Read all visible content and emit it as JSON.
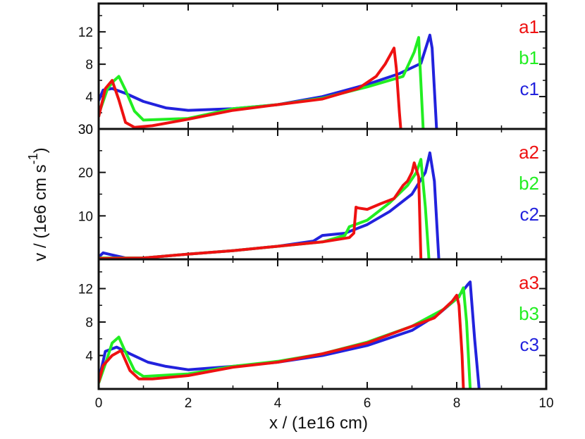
{
  "chart_data": {
    "type": "line",
    "xlabel": "x / (1e16 cm)",
    "ylabel": {
      "main": "v / (1e6 cm s",
      "sup": "-1",
      "close": ")"
    },
    "xlim": [
      0,
      10
    ],
    "xticks": [
      0,
      2,
      4,
      6,
      8,
      10
    ],
    "colors": {
      "a": "#ee1111",
      "b": "#22ee22",
      "c": "#2222dd"
    },
    "panels": [
      {
        "ylim": [
          0,
          15.5
        ],
        "yticks": [
          4,
          8,
          12
        ],
        "extra_tick_label": "30",
        "series": [
          {
            "name": "c1",
            "color": "#2222dd",
            "points": [
              [
                0,
                3.5
              ],
              [
                0.1,
                4.8
              ],
              [
                0.3,
                5
              ],
              [
                0.6,
                4.4
              ],
              [
                1,
                3.4
              ],
              [
                1.5,
                2.6
              ],
              [
                2,
                2.3
              ],
              [
                3,
                2.5
              ],
              [
                4,
                3
              ],
              [
                5,
                4
              ],
              [
                6,
                5.5
              ],
              [
                6.7,
                6.8
              ],
              [
                7.2,
                8.1
              ],
              [
                7.4,
                11.6
              ],
              [
                7.45,
                10
              ],
              [
                7.55,
                0
              ]
            ]
          },
          {
            "name": "b1",
            "color": "#22ee22",
            "points": [
              [
                0,
                1.8
              ],
              [
                0.2,
                5
              ],
              [
                0.35,
                6
              ],
              [
                0.45,
                6.5
              ],
              [
                0.6,
                4.8
              ],
              [
                0.8,
                2.2
              ],
              [
                1,
                1.1
              ],
              [
                2,
                1.3
              ],
              [
                3,
                2.5
              ],
              [
                4,
                3
              ],
              [
                5,
                3.8
              ],
              [
                6,
                5.2
              ],
              [
                6.8,
                6.5
              ],
              [
                7.05,
                9.5
              ],
              [
                7.15,
                11.3
              ],
              [
                7.25,
                0
              ]
            ]
          },
          {
            "name": "a1",
            "color": "#ee1111",
            "points": [
              [
                0,
                1.5
              ],
              [
                0.15,
                5
              ],
              [
                0.3,
                6
              ],
              [
                0.45,
                3.6
              ],
              [
                0.6,
                0.8
              ],
              [
                0.8,
                0.2
              ],
              [
                1.2,
                0.4
              ],
              [
                2,
                1.2
              ],
              [
                3,
                2.3
              ],
              [
                4,
                3
              ],
              [
                5,
                3.7
              ],
              [
                5.8,
                5
              ],
              [
                6.2,
                6.5
              ],
              [
                6.4,
                8
              ],
              [
                6.6,
                10
              ],
              [
                6.65,
                7.5
              ],
              [
                6.72,
                2
              ],
              [
                6.75,
                0
              ]
            ]
          }
        ],
        "legend": [
          "a1",
          "b1",
          "c1"
        ]
      },
      {
        "ylim": [
          0,
          30
        ],
        "yticks": [
          10,
          20,
          30
        ],
        "extra_tick_label": "",
        "series": [
          {
            "name": "c2",
            "color": "#2222dd",
            "points": [
              [
                0,
                0.5
              ],
              [
                0.1,
                1.5
              ],
              [
                0.3,
                1
              ],
              [
                0.6,
                0.3
              ],
              [
                1,
                0.3
              ],
              [
                2,
                1.2
              ],
              [
                3,
                2
              ],
              [
                4,
                3
              ],
              [
                4.8,
                4.2
              ],
              [
                5,
                5.5
              ],
              [
                5.5,
                6
              ],
              [
                6,
                8
              ],
              [
                6.5,
                11
              ],
              [
                7,
                15
              ],
              [
                7.3,
                20
              ],
              [
                7.4,
                24.5
              ],
              [
                7.5,
                18
              ],
              [
                7.6,
                0
              ]
            ]
          },
          {
            "name": "b2",
            "color": "#22ee22",
            "points": [
              [
                0,
                0.3
              ],
              [
                1,
                0.3
              ],
              [
                2,
                1.2
              ],
              [
                3,
                2
              ],
              [
                4,
                3
              ],
              [
                5,
                4
              ],
              [
                5.5,
                5.5
              ],
              [
                5.6,
                7.5
              ],
              [
                6,
                9
              ],
              [
                6.5,
                13
              ],
              [
                6.9,
                17
              ],
              [
                7.1,
                20
              ],
              [
                7.2,
                23
              ],
              [
                7.3,
                12
              ],
              [
                7.38,
                0
              ]
            ]
          },
          {
            "name": "a2",
            "color": "#ee1111",
            "points": [
              [
                0,
                0.2
              ],
              [
                1,
                0.3
              ],
              [
                2,
                1.2
              ],
              [
                3,
                2
              ],
              [
                4,
                3
              ],
              [
                5,
                4
              ],
              [
                5.6,
                5
              ],
              [
                5.7,
                6
              ],
              [
                5.75,
                12
              ],
              [
                5.8,
                11.8
              ],
              [
                6,
                11.5
              ],
              [
                6.3,
                12.8
              ],
              [
                6.6,
                14
              ],
              [
                6.8,
                17
              ],
              [
                6.9,
                18
              ],
              [
                7.0,
                20
              ],
              [
                7.05,
                22.2
              ],
              [
                7.15,
                19
              ],
              [
                7.2,
                0
              ]
            ]
          }
        ],
        "legend": [
          "a2",
          "b2",
          "c2"
        ]
      },
      {
        "ylim": [
          0,
          15.5
        ],
        "yticks": [
          4,
          8,
          12
        ],
        "extra_tick_label": "",
        "series": [
          {
            "name": "c3",
            "color": "#2222dd",
            "points": [
              [
                0,
                1
              ],
              [
                0.15,
                4.5
              ],
              [
                0.4,
                5
              ],
              [
                0.7,
                4.2
              ],
              [
                1.1,
                3.2
              ],
              [
                1.5,
                2.7
              ],
              [
                2,
                2.3
              ],
              [
                3,
                2.7
              ],
              [
                4,
                3.2
              ],
              [
                5,
                4
              ],
              [
                6,
                5.2
              ],
              [
                7,
                7
              ],
              [
                7.6,
                9
              ],
              [
                8,
                10.8
              ],
              [
                8.25,
                12.5
              ],
              [
                8.3,
                12.8
              ],
              [
                8.4,
                6
              ],
              [
                8.5,
                0
              ]
            ]
          },
          {
            "name": "b3",
            "color": "#22ee22",
            "points": [
              [
                0,
                0.7
              ],
              [
                0.15,
                3
              ],
              [
                0.3,
                5.5
              ],
              [
                0.45,
                6.2
              ],
              [
                0.6,
                4.4
              ],
              [
                0.8,
                2.2
              ],
              [
                1,
                1.5
              ],
              [
                2,
                1.8
              ],
              [
                3,
                2.7
              ],
              [
                4,
                3.3
              ],
              [
                5,
                4.2
              ],
              [
                6,
                5.6
              ],
              [
                7,
                7.5
              ],
              [
                7.7,
                9.5
              ],
              [
                8.05,
                11
              ],
              [
                8.15,
                12.1
              ],
              [
                8.22,
                8
              ],
              [
                8.3,
                0
              ]
            ]
          },
          {
            "name": "a3",
            "color": "#ee1111",
            "points": [
              [
                0,
                0.8
              ],
              [
                0.1,
                2.8
              ],
              [
                0.3,
                4
              ],
              [
                0.5,
                4.6
              ],
              [
                0.7,
                2.2
              ],
              [
                0.9,
                1.2
              ],
              [
                1.2,
                1.2
              ],
              [
                2,
                1.6
              ],
              [
                3,
                2.6
              ],
              [
                4,
                3.2
              ],
              [
                5,
                4.2
              ],
              [
                6,
                5.5
              ],
              [
                7,
                7.5
              ],
              [
                7.5,
                8.5
              ],
              [
                7.9,
                10.5
              ],
              [
                8,
                11.2
              ],
              [
                8.05,
                10
              ],
              [
                8.12,
                4
              ],
              [
                8.15,
                0
              ]
            ]
          }
        ],
        "legend": [
          "a3",
          "b3",
          "c3"
        ]
      }
    ]
  }
}
